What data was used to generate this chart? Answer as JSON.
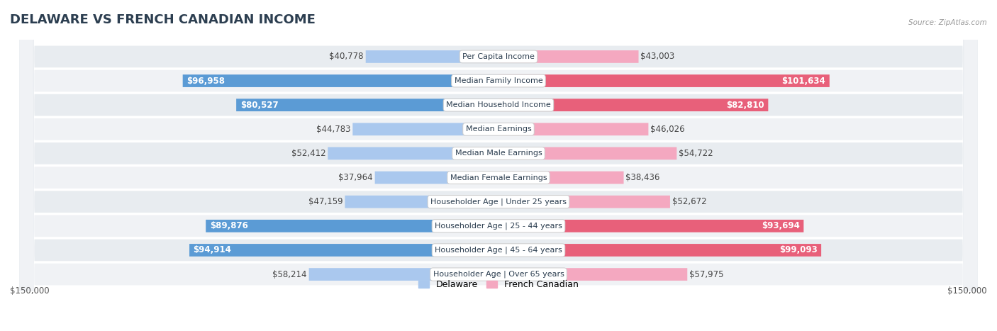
{
  "title": "DELAWARE VS FRENCH CANADIAN INCOME",
  "source": "Source: ZipAtlas.com",
  "categories": [
    "Per Capita Income",
    "Median Family Income",
    "Median Household Income",
    "Median Earnings",
    "Median Male Earnings",
    "Median Female Earnings",
    "Householder Age | Under 25 years",
    "Householder Age | 25 - 44 years",
    "Householder Age | 45 - 64 years",
    "Householder Age | Over 65 years"
  ],
  "delaware_values": [
    40778,
    96958,
    80527,
    44783,
    52412,
    37964,
    47159,
    89876,
    94914,
    58214
  ],
  "french_canadian_values": [
    43003,
    101634,
    82810,
    46026,
    54722,
    38436,
    52672,
    93694,
    99093,
    57975
  ],
  "delaware_labels": [
    "$40,778",
    "$96,958",
    "$80,527",
    "$44,783",
    "$52,412",
    "$37,964",
    "$47,159",
    "$89,876",
    "$94,914",
    "$58,214"
  ],
  "french_canadian_labels": [
    "$43,003",
    "$101,634",
    "$82,810",
    "$46,026",
    "$54,722",
    "$38,436",
    "$52,672",
    "$93,694",
    "$99,093",
    "$57,975"
  ],
  "delaware_color_light": "#aac8ee",
  "delaware_color_dark": "#5b9bd5",
  "french_canadian_color_light": "#f4a8c0",
  "french_canadian_color_dark": "#e8607a",
  "max_value": 150000,
  "background_color": "#ffffff",
  "row_bg_even": "#e8ecf0",
  "row_bg_odd": "#f0f2f5",
  "label_fontsize": 8.5,
  "title_fontsize": 13,
  "inside_threshold": 65000,
  "x_label_left": "$150,000",
  "x_label_right": "$150,000",
  "legend_label_delaware": "Delaware",
  "legend_label_fc": "French Canadian"
}
